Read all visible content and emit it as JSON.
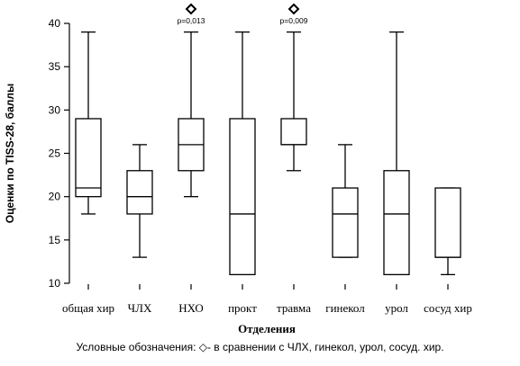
{
  "chart_data": {
    "type": "box",
    "categories": [
      "общая хир",
      "ЧЛХ",
      "НХО",
      "прокт",
      "травма",
      "гинекол",
      "урол",
      "сосуд хир"
    ],
    "boxes": [
      {
        "min": 18,
        "q1": 20,
        "median": 21,
        "q3": 29,
        "max": 39
      },
      {
        "min": 13,
        "q1": 18,
        "median": 20,
        "q3": 23,
        "max": 26
      },
      {
        "min": 20,
        "q1": 23,
        "median": 26,
        "q3": 29,
        "max": 39
      },
      {
        "min": 11,
        "q1": 11,
        "median": 18,
        "q3": 29,
        "max": 39
      },
      {
        "min": 23,
        "q1": 26,
        "median": 26,
        "q3": 29,
        "max": 39
      },
      {
        "min": 13,
        "q1": 13,
        "median": 18,
        "q3": 21,
        "max": 26
      },
      {
        "min": 11,
        "q1": 11,
        "median": 18,
        "q3": 23,
        "max": 39
      },
      {
        "min": 11,
        "q1": 13,
        "median": 13,
        "q3": 21,
        "max": 21
      }
    ],
    "ylim": [
      10,
      40
    ],
    "yticks": [
      10,
      15,
      20,
      25,
      30,
      35,
      40
    ],
    "ylabel": "Оценки по TISS-28, баллы",
    "xlabel": "Отделения",
    "annotations": [
      {
        "category_index": 2,
        "text": "p=0,013",
        "marker": "diamond"
      },
      {
        "category_index": 4,
        "text": "p=0,009",
        "marker": "diamond"
      }
    ],
    "note": "Условные обозначения: ◇- в сравнении с  ЧЛХ,  гинекол, урол, сосуд. хир."
  }
}
